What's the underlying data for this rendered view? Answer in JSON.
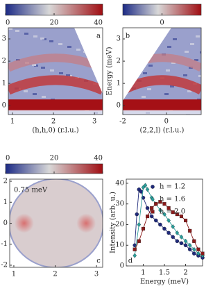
{
  "chart_data": [
    {
      "type": "heatmap",
      "panel_label": "a",
      "xlabel": "(h,h,0) (r.l.u.)",
      "xlim": [
        0.9,
        3.2
      ],
      "xticks": [
        1,
        2,
        3
      ],
      "ylim": [
        -0.4,
        3.5
      ],
      "yticks": [
        0,
        1,
        2,
        3
      ],
      "colorbar": {
        "lim": [
          0,
          40
        ],
        "ticks": [
          0,
          20,
          40
        ]
      }
    },
    {
      "type": "heatmap",
      "panel_label": "b",
      "xlabel": "(2,2,l) (r.l.u.)",
      "ylabel": "Energy (meV)",
      "xlim": [
        -2,
        1.6
      ],
      "xticks": [
        -2,
        0
      ],
      "ylim": [
        -0.4,
        3.5
      ],
      "yticks": [
        0,
        1,
        2,
        3
      ],
      "colorbar": {
        "lim": [
          -40,
          40
        ],
        "ticks": [
          0
        ]
      }
    },
    {
      "type": "heatmap",
      "panel_label": "c",
      "annotation": "0.75 meV",
      "xlim": [
        0.9,
        3.15
      ],
      "xticks": [
        1,
        2,
        3
      ],
      "ylim": [
        -2.1,
        2.1
      ],
      "yticks": [
        2,
        1,
        0,
        -1,
        -2
      ],
      "colorbar": {
        "lim": [
          0,
          40
        ],
        "ticks": [
          0,
          20,
          40
        ]
      }
    },
    {
      "type": "scatter",
      "panel_label": "d",
      "xlabel": "Energy (meV)",
      "ylabel": "Intensity (arb. u.)",
      "xlim": [
        0.6,
        2.4
      ],
      "xticks": [
        1,
        1.5,
        2
      ],
      "ylim": [
        0,
        42
      ],
      "yticks": [
        0,
        10,
        20,
        30,
        40
      ],
      "series": [
        {
          "name": "h = 1.2",
          "color": "#1f2a7a",
          "marker": "circle",
          "x": [
            0.8,
            0.85,
            0.9,
            0.95,
            1.0,
            1.1,
            1.2,
            1.3,
            1.4,
            1.5,
            1.6,
            1.7,
            1.8,
            1.9,
            2.0,
            2.1,
            2.2,
            2.3,
            2.4
          ],
          "values": [
            10,
            25,
            37,
            36,
            33,
            28,
            24,
            22,
            20,
            18,
            16,
            14,
            12,
            11,
            10,
            8,
            6,
            5,
            4
          ]
        },
        {
          "name": "h = 1.6",
          "color": "#2a9d9a",
          "marker": "diamond",
          "x": [
            0.8,
            0.9,
            1.0,
            1.05,
            1.1,
            1.2,
            1.3,
            1.4,
            1.5,
            1.6,
            1.7,
            1.8,
            1.9,
            2.0,
            2.1,
            2.2,
            2.3,
            2.4
          ],
          "values": [
            5,
            20,
            38,
            39,
            37,
            33,
            30,
            27,
            25,
            22,
            19,
            16,
            14,
            12,
            10,
            8,
            6,
            5
          ]
        },
        {
          "name": "h = 2.0",
          "color": "#8b1a1a",
          "marker": "square",
          "x": [
            0.8,
            0.9,
            1.0,
            1.1,
            1.2,
            1.3,
            1.4,
            1.5,
            1.6,
            1.7,
            1.8,
            1.9,
            2.0,
            2.1,
            2.2,
            2.3,
            2.4
          ],
          "values": [
            8,
            12,
            18,
            24,
            28,
            30,
            31,
            30,
            28,
            26,
            25,
            24,
            22,
            17,
            12,
            8,
            6
          ]
        }
      ]
    }
  ]
}
